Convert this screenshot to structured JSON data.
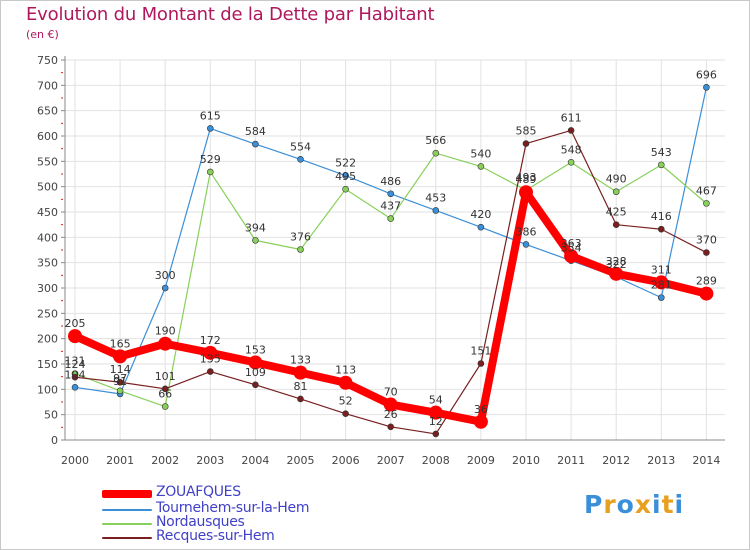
{
  "header": {
    "title": "Evolution du Montant de la Dette par Habitant",
    "subtitle": "(en €)"
  },
  "logo": {
    "text": "Proxiti",
    "letter_colors": [
      "#3a8fd8",
      "#e8a020",
      "#3a8fd8",
      "#e8a020",
      "#3a8fd8",
      "#e8a020",
      "#3a8fd8"
    ]
  },
  "chart_data": {
    "type": "line",
    "title": "Evolution du Montant de la Dette par Habitant",
    "subtitle": "(en €)",
    "xlabel": "",
    "ylabel": "",
    "x": [
      "2000",
      "2001",
      "2002",
      "2003",
      "2004",
      "2005",
      "2006",
      "2007",
      "2008",
      "2009",
      "2010",
      "2011",
      "2012",
      "2013",
      "2014"
    ],
    "ylim": [
      0,
      750
    ],
    "yticks": [
      0,
      50,
      100,
      150,
      200,
      250,
      300,
      350,
      400,
      450,
      500,
      550,
      600,
      650,
      700,
      750
    ],
    "grid": true,
    "legend_position": "bottom-left",
    "series": [
      {
        "name": "ZOUAFQUES",
        "color": "#ff0000",
        "values": [
          205,
          165,
          190,
          172,
          153,
          133,
          113,
          70,
          54,
          36,
          489,
          363,
          328,
          311,
          289
        ]
      },
      {
        "name": "Tournehem-sur-la-Hem",
        "color": "#3a8fd8",
        "values": [
          104,
          91,
          300,
          615,
          584,
          554,
          522,
          486,
          453,
          420,
          386,
          354,
          322,
          281,
          696
        ]
      },
      {
        "name": "Nordausques",
        "color": "#88d05a",
        "values": [
          131,
          97,
          66,
          529,
          394,
          376,
          495,
          437,
          566,
          540,
          493,
          548,
          490,
          543,
          467
        ]
      },
      {
        "name": "Recques-sur-Hem",
        "color": "#7a1f1f",
        "values": [
          124,
          114,
          101,
          135,
          109,
          81,
          52,
          26,
          12,
          151,
          585,
          611,
          425,
          416,
          370
        ]
      }
    ]
  }
}
